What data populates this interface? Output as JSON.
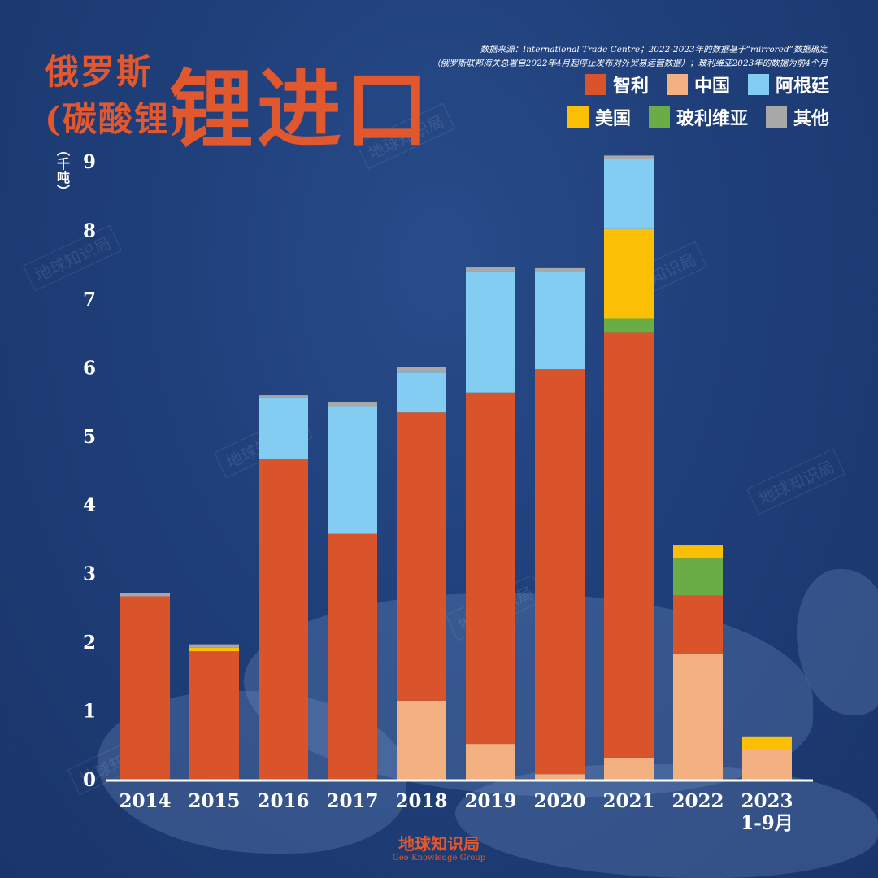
{
  "header": {
    "title_line1": "俄罗斯",
    "title_line2": "(碳酸锂)",
    "title_main": "锂进口"
  },
  "source": {
    "line1": "数据来源：International Trade Centre；2022-2023年的数据基于“mirrored”数据确定",
    "line2": "（俄罗斯联邦海关总署自2022年4月起停止发布对外贸易运营数据）；玻利维亚2023年的数据为前4个月"
  },
  "unit_label": "（千吨）",
  "watermark": "地球知识局",
  "footer": {
    "brand_cn": "地球知识局",
    "brand_en": "Geo-Knowledge Group"
  },
  "colors": {
    "智利": "#d9542b",
    "中国": "#f3b081",
    "阿根廷": "#82cdf1",
    "美国": "#fbc005",
    "玻利维亚": "#6aac45",
    "其他": "#a8a8a8"
  },
  "chart_data": {
    "type": "bar",
    "stacked": true,
    "title": "俄罗斯(碳酸锂)锂进口",
    "ylabel": "（千吨）",
    "ylim": [
      0,
      9
    ],
    "yticks": [
      "0",
      "1",
      "2",
      "3",
      "4",
      "5",
      "6",
      "7",
      "8",
      "9"
    ],
    "legend_position": "top-right",
    "grid": false,
    "categories": [
      "2014",
      "2015",
      "2016",
      "2017",
      "2018",
      "2019",
      "2020",
      "2021",
      "2022",
      "2023\n1-9月"
    ],
    "series": [
      {
        "name": "中国",
        "values": [
          0,
          0,
          0,
          0,
          1.15,
          0.52,
          0.08,
          0.32,
          1.83,
          0.43
        ]
      },
      {
        "name": "智利",
        "values": [
          2.67,
          1.87,
          4.67,
          3.58,
          4.2,
          5.12,
          5.9,
          6.2,
          0.85,
          0
        ]
      },
      {
        "name": "玻利维亚",
        "values": [
          0,
          0,
          0,
          0,
          0,
          0,
          0,
          0.2,
          0.55,
          0
        ]
      },
      {
        "name": "美国",
        "values": [
          0,
          0.05,
          0,
          0,
          0,
          0,
          0,
          1.3,
          0.18,
          0.2
        ]
      },
      {
        "name": "阿根廷",
        "values": [
          0,
          0,
          0.9,
          1.85,
          0.58,
          1.77,
          1.42,
          1.02,
          0,
          0
        ]
      },
      {
        "name": "其他",
        "values": [
          0.05,
          0.05,
          0.03,
          0.07,
          0.08,
          0.05,
          0.05,
          0.05,
          0,
          0
        ]
      }
    ]
  }
}
